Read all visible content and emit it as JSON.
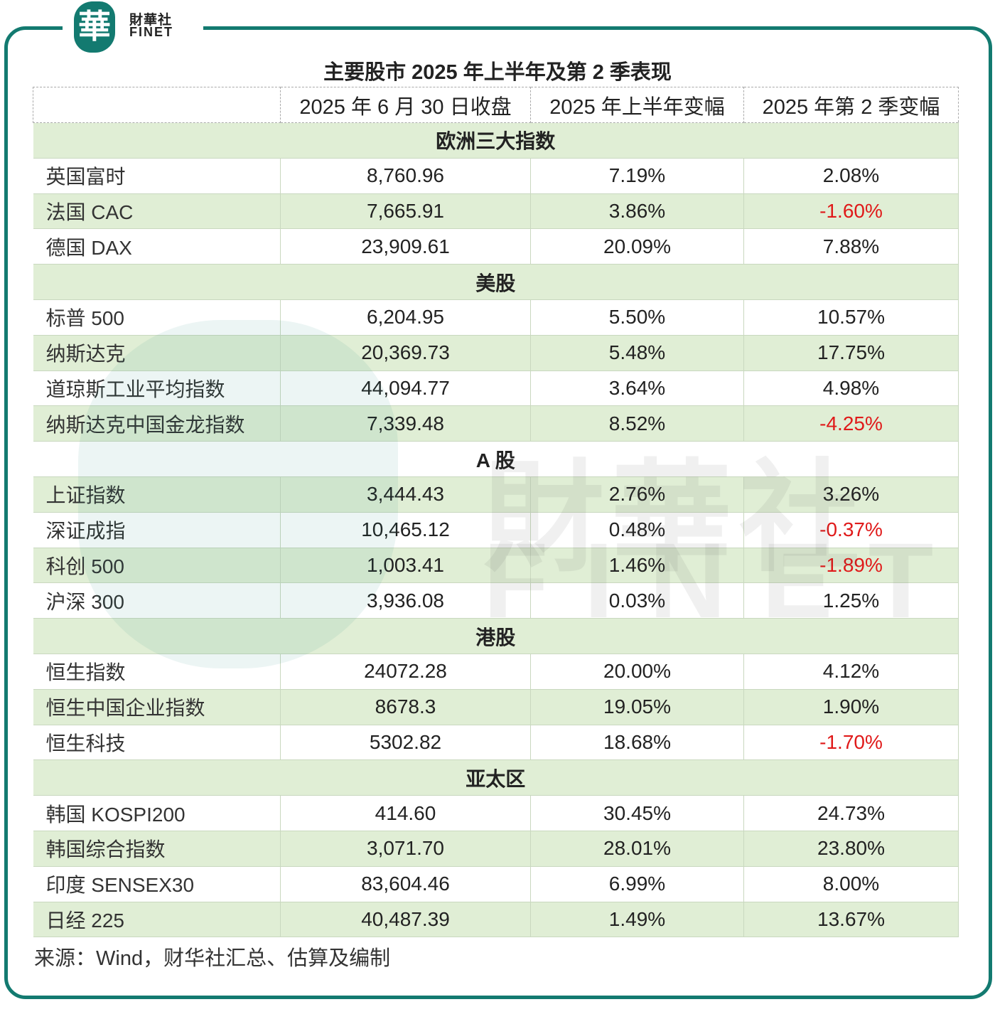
{
  "logo": {
    "seal": "華",
    "cn": "財華社",
    "en": "FINET"
  },
  "title": "主要股市 2025 年上半年及第 2 季表现",
  "headers": [
    "",
    "2025 年 6 月 30 日收盘",
    "2025 年上半年变幅",
    "2025 年第 2 季变幅"
  ],
  "rows": [
    {
      "section": "欧洲三大指数"
    },
    {
      "name": "英国富时",
      "close": "8,760.96",
      "h1": "7.19%",
      "q2": "2.08%"
    },
    {
      "name": "法国 CAC",
      "close": "7,665.91",
      "h1": "3.86%",
      "q2": "-1.60%"
    },
    {
      "name": "德国 DAX",
      "close": "23,909.61",
      "h1": "20.09%",
      "q2": "7.88%"
    },
    {
      "section": "美股"
    },
    {
      "name": "标普 500",
      "close": "6,204.95",
      "h1": "5.50%",
      "q2": "10.57%"
    },
    {
      "name": "纳斯达克",
      "close": "20,369.73",
      "h1": "5.48%",
      "q2": "17.75%"
    },
    {
      "name": "道琼斯工业平均指数",
      "close": "44,094.77",
      "h1": "3.64%",
      "q2": "4.98%"
    },
    {
      "name": "纳斯达克中国金龙指数",
      "close": "7,339.48",
      "h1": "8.52%",
      "q2": "-4.25%"
    },
    {
      "section": "A 股"
    },
    {
      "name": "上证指数",
      "close": "3,444.43",
      "h1": "2.76%",
      "q2": "3.26%"
    },
    {
      "name": "深证成指",
      "close": "10,465.12",
      "h1": "0.48%",
      "q2": "-0.37%"
    },
    {
      "name": "科创 500",
      "close": "1,003.41",
      "h1": "1.46%",
      "q2": "-1.89%"
    },
    {
      "name": "沪深 300",
      "close": "3,936.08",
      "h1": "0.03%",
      "q2": "1.25%"
    },
    {
      "section": "港股"
    },
    {
      "name": "恒生指数",
      "close": "24072.28",
      "h1": "20.00%",
      "q2": "4.12%"
    },
    {
      "name": "恒生中国企业指数",
      "close": "8678.3",
      "h1": "19.05%",
      "q2": "1.90%"
    },
    {
      "name": "恒生科技",
      "close": "5302.82",
      "h1": "18.68%",
      "q2": "-1.70%"
    },
    {
      "section": "亚太区"
    },
    {
      "name": "韩国 KOSPI200",
      "close": "414.60",
      "h1": "30.45%",
      "q2": "24.73%"
    },
    {
      "name": "韩国综合指数",
      "close": "3,071.70",
      "h1": "28.01%",
      "q2": "23.80%"
    },
    {
      "name": "印度 SENSEX30",
      "close": "83,604.46",
      "h1": "6.99%",
      "q2": "8.00%"
    },
    {
      "name": "日经 225",
      "close": "40,487.39",
      "h1": "1.49%",
      "q2": "13.67%"
    }
  ],
  "source": "来源：Wind，财华社汇总、估算及编制",
  "colors": {
    "brand": "#137a70",
    "negative": "#e01a1a",
    "row_green": "#e0eed5"
  }
}
